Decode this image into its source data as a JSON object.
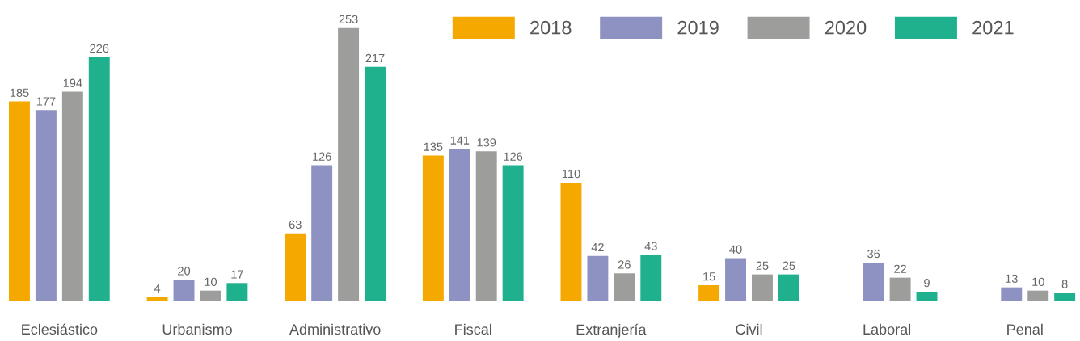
{
  "chart_data": {
    "type": "bar",
    "categories": [
      "Eclesiástico",
      "Urbanismo",
      "Administrativo",
      "Fiscal",
      "Extranjería",
      "Civil",
      "Laboral",
      "Penal"
    ],
    "series": [
      {
        "name": "2018",
        "color": "#f5a800",
        "values": [
          185,
          4,
          63,
          135,
          110,
          15,
          null,
          null
        ]
      },
      {
        "name": "2019",
        "color": "#8e92c2",
        "values": [
          177,
          20,
          126,
          141,
          42,
          40,
          36,
          13
        ]
      },
      {
        "name": "2020",
        "color": "#9d9d9c",
        "values": [
          194,
          10,
          253,
          139,
          26,
          25,
          22,
          10
        ]
      },
      {
        "name": "2021",
        "color": "#1fb08e",
        "values": [
          226,
          17,
          217,
          126,
          43,
          25,
          9,
          8
        ]
      }
    ],
    "data_labels": true,
    "legend": "top right",
    "grid": false
  }
}
